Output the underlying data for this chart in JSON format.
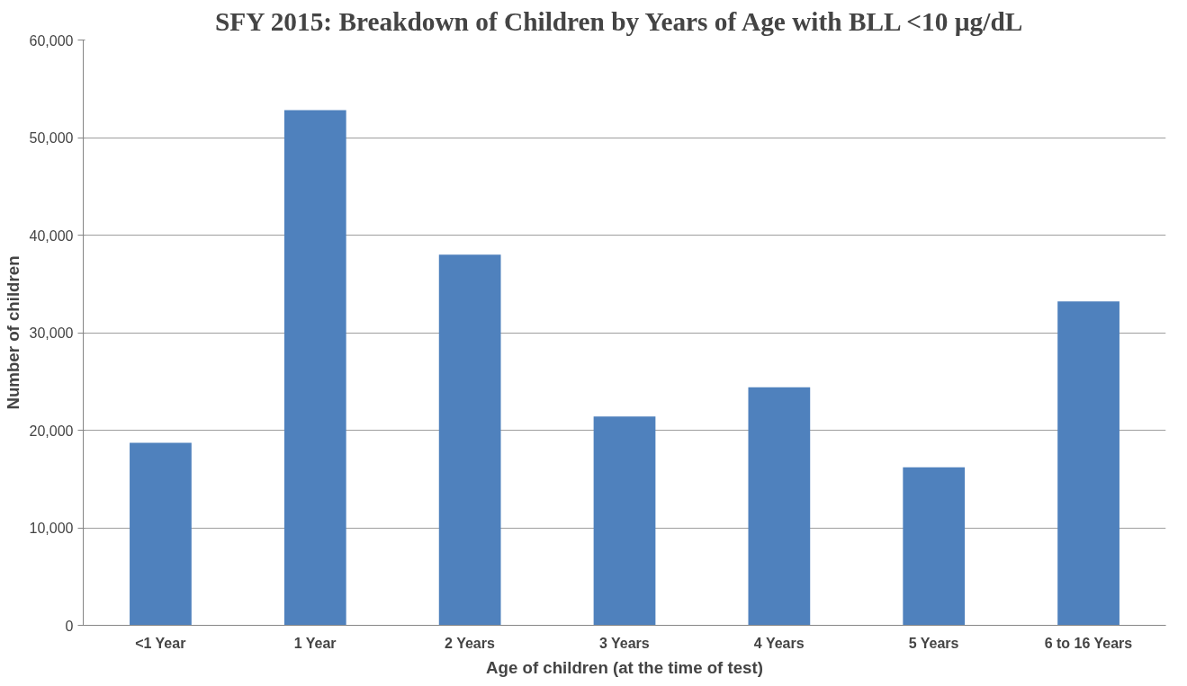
{
  "chart_data": {
    "type": "bar",
    "title": "SFY 2015:  Breakdown of Children by Years of Age with BLL <10 µg/dL",
    "xlabel": "Age of children (at the time of test)",
    "ylabel": "Number of children",
    "categories": [
      "<1 Year",
      "1 Year",
      "2 Years",
      "3 Years",
      "4 Years",
      "5 Years",
      "6 to 16 Years"
    ],
    "values": [
      18700,
      52800,
      38000,
      21400,
      24400,
      16200,
      33200
    ],
    "color": "#4f81bd",
    "ylim": [
      0,
      60000
    ],
    "yticks": [
      {
        "value": 0,
        "label": "0"
      },
      {
        "value": 10000,
        "label": "10,000"
      },
      {
        "value": 20000,
        "label": "20,000"
      },
      {
        "value": 30000,
        "label": "30,000"
      },
      {
        "value": 40000,
        "label": "40,000"
      },
      {
        "value": 50000,
        "label": "50,000"
      },
      {
        "value": 60000,
        "label": "60,000"
      }
    ],
    "grid": "y"
  }
}
